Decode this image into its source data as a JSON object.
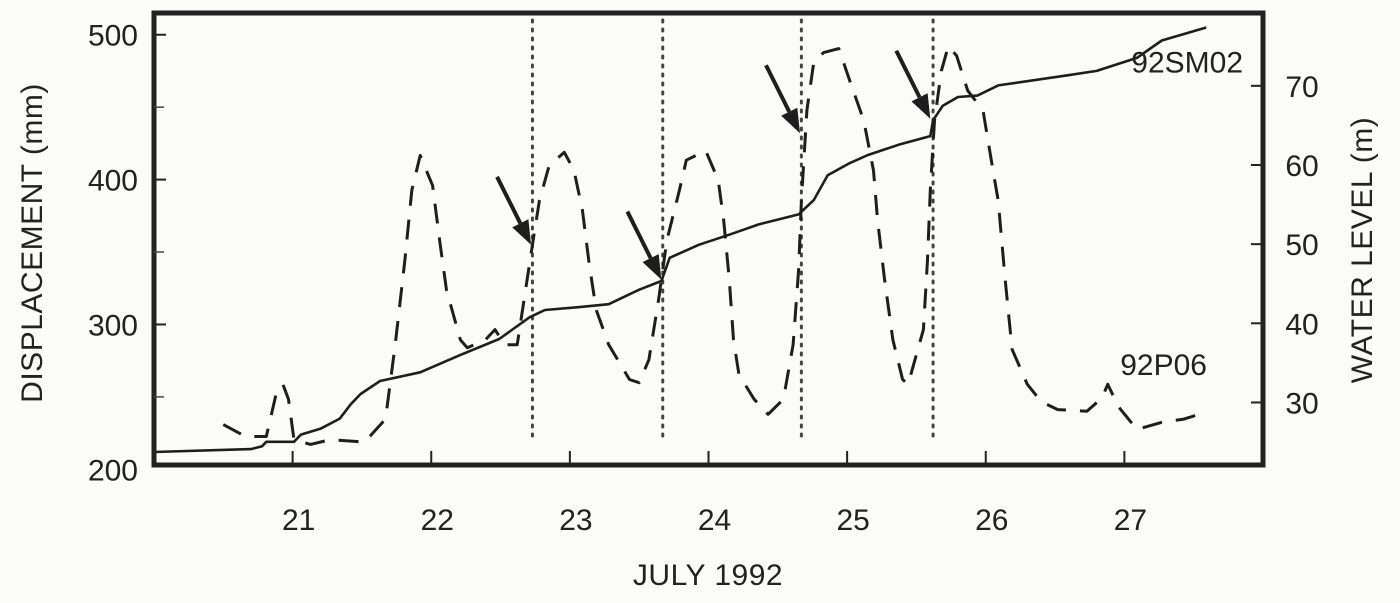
{
  "chart_data": {
    "type": "line",
    "title": "",
    "xlabel": "JULY 1992",
    "ylabel": "DISPLACEMENT (mm)",
    "ylabel_right": "WATER LEVEL (m)",
    "xlim": [
      20.0,
      28.0
    ],
    "ylim": [
      203,
      515
    ],
    "ylim_right": [
      22.1,
      79.2
    ],
    "x_ticks": [
      21,
      22,
      23,
      24,
      25,
      26,
      27
    ],
    "x_tick_labels": [
      "21",
      "22",
      "23",
      "24",
      "25",
      "26",
      "27"
    ],
    "y_ticks": [
      200,
      300,
      400,
      500
    ],
    "y_tick_labels": [
      "200",
      "300",
      "400",
      "500"
    ],
    "y_minor_ticks": [
      250,
      350,
      450
    ],
    "y_right_ticks": [
      30,
      40,
      50,
      60,
      70
    ],
    "y_right_tick_labels": [
      "30",
      "40",
      "50",
      "60",
      "70"
    ],
    "grid": false,
    "legend": "none (series labelled inline)",
    "series": [
      {
        "name": "92SM02",
        "quantity": "displacement",
        "axis": "left",
        "style": "solid",
        "label_position": {
          "day": 27.05,
          "value": 474
        },
        "points": [
          [
            20.0,
            212
          ],
          [
            20.7,
            214
          ],
          [
            20.78,
            216
          ],
          [
            20.81,
            219
          ],
          [
            21.01,
            219
          ],
          [
            21.06,
            224
          ],
          [
            21.2,
            228
          ],
          [
            21.34,
            235
          ],
          [
            21.42,
            245
          ],
          [
            21.49,
            252
          ],
          [
            21.63,
            261
          ],
          [
            21.92,
            267
          ],
          [
            22.21,
            279
          ],
          [
            22.49,
            290
          ],
          [
            22.71,
            305
          ],
          [
            22.82,
            310
          ],
          [
            23.07,
            312
          ],
          [
            23.28,
            314
          ],
          [
            23.5,
            324
          ],
          [
            23.66,
            330
          ],
          [
            23.72,
            346
          ],
          [
            23.93,
            355
          ],
          [
            24.15,
            362
          ],
          [
            24.36,
            369
          ],
          [
            24.65,
            376
          ],
          [
            24.76,
            386
          ],
          [
            24.86,
            403
          ],
          [
            25.01,
            411
          ],
          [
            25.15,
            417
          ],
          [
            25.37,
            424
          ],
          [
            25.6,
            430
          ],
          [
            25.62,
            441
          ],
          [
            25.69,
            451
          ],
          [
            25.8,
            457
          ],
          [
            25.94,
            458
          ],
          [
            26.09,
            465
          ],
          [
            26.59,
            472
          ],
          [
            26.8,
            475
          ],
          [
            27.09,
            484
          ],
          [
            27.27,
            496
          ],
          [
            27.59,
            505
          ]
        ]
      },
      {
        "name": "92P06",
        "quantity": "water level",
        "axis": "right",
        "style": "dashed",
        "label_position": {
          "day": 26.97,
          "value": 33.5
        },
        "points": [
          [
            20.5,
            27.2
          ],
          [
            20.66,
            25.7
          ],
          [
            20.81,
            25.7
          ],
          [
            20.88,
            31.0
          ],
          [
            20.93,
            32.3
          ],
          [
            20.97,
            30.4
          ],
          [
            21.01,
            25.3
          ],
          [
            21.13,
            24.7
          ],
          [
            21.27,
            25.3
          ],
          [
            21.52,
            25.0
          ],
          [
            21.67,
            27.9
          ],
          [
            21.74,
            37.3
          ],
          [
            21.81,
            48.0
          ],
          [
            21.86,
            56.8
          ],
          [
            21.92,
            61.2
          ],
          [
            22.01,
            57.4
          ],
          [
            22.06,
            50.5
          ],
          [
            22.11,
            44.2
          ],
          [
            22.21,
            37.9
          ],
          [
            22.26,
            36.9
          ],
          [
            22.39,
            37.9
          ],
          [
            22.46,
            39.2
          ],
          [
            22.53,
            37.3
          ],
          [
            22.62,
            37.3
          ],
          [
            22.67,
            43.0
          ],
          [
            22.73,
            49.9
          ],
          [
            22.78,
            55.5
          ],
          [
            22.85,
            59.9
          ],
          [
            22.96,
            61.6
          ],
          [
            23.03,
            59.3
          ],
          [
            23.09,
            54.3
          ],
          [
            23.14,
            47.4
          ],
          [
            23.19,
            41.7
          ],
          [
            23.28,
            37.3
          ],
          [
            23.43,
            32.9
          ],
          [
            23.5,
            32.5
          ],
          [
            23.57,
            35.4
          ],
          [
            23.64,
            43.0
          ],
          [
            23.7,
            50.5
          ],
          [
            23.79,
            56.8
          ],
          [
            23.84,
            60.6
          ],
          [
            23.98,
            61.8
          ],
          [
            24.07,
            58.1
          ],
          [
            24.11,
            53.0
          ],
          [
            24.15,
            45.5
          ],
          [
            24.18,
            37.9
          ],
          [
            24.22,
            33.5
          ],
          [
            24.33,
            30.4
          ],
          [
            24.43,
            28.5
          ],
          [
            24.54,
            30.4
          ],
          [
            24.61,
            37.3
          ],
          [
            24.65,
            46.7
          ],
          [
            24.67,
            55.5
          ],
          [
            24.71,
            66.9
          ],
          [
            24.76,
            73.1
          ],
          [
            24.83,
            74.2
          ],
          [
            24.94,
            74.7
          ],
          [
            25.02,
            70.6
          ],
          [
            25.12,
            65.6
          ],
          [
            25.19,
            59.3
          ],
          [
            25.22,
            53.0
          ],
          [
            25.27,
            45.5
          ],
          [
            25.33,
            37.9
          ],
          [
            25.4,
            32.9
          ],
          [
            25.44,
            32.3
          ],
          [
            25.55,
            39.2
          ],
          [
            25.58,
            48.0
          ],
          [
            25.6,
            56.8
          ],
          [
            25.63,
            65.6
          ],
          [
            25.68,
            71.9
          ],
          [
            25.73,
            75.0
          ],
          [
            25.79,
            73.8
          ],
          [
            25.87,
            69.4
          ],
          [
            25.98,
            66.9
          ],
          [
            26.04,
            60.6
          ],
          [
            26.09,
            55.5
          ],
          [
            26.14,
            45.5
          ],
          [
            26.19,
            36.7
          ],
          [
            26.3,
            32.3
          ],
          [
            26.4,
            30.1
          ],
          [
            26.52,
            29.1
          ],
          [
            26.73,
            28.9
          ],
          [
            26.84,
            30.6
          ],
          [
            26.88,
            32.3
          ],
          [
            26.96,
            29.4
          ],
          [
            27.09,
            26.6
          ],
          [
            27.27,
            27.5
          ],
          [
            27.43,
            27.9
          ],
          [
            27.52,
            28.4
          ]
        ]
      }
    ],
    "annotations": {
      "vertical_dotted_lines": [
        22.73,
        23.67,
        24.67,
        25.62
      ],
      "arrows": [
        {
          "tip_day": 22.72,
          "tip_mm": 355
        },
        {
          "tip_day": 23.66,
          "tip_mm": 331
        },
        {
          "tip_day": 24.66,
          "tip_mm": 432
        },
        {
          "tip_day": 25.6,
          "tip_mm": 442
        }
      ]
    }
  },
  "colors": {
    "ink": "#1e1e1e",
    "background": "#fbfbf9",
    "frame": "#222222"
  }
}
